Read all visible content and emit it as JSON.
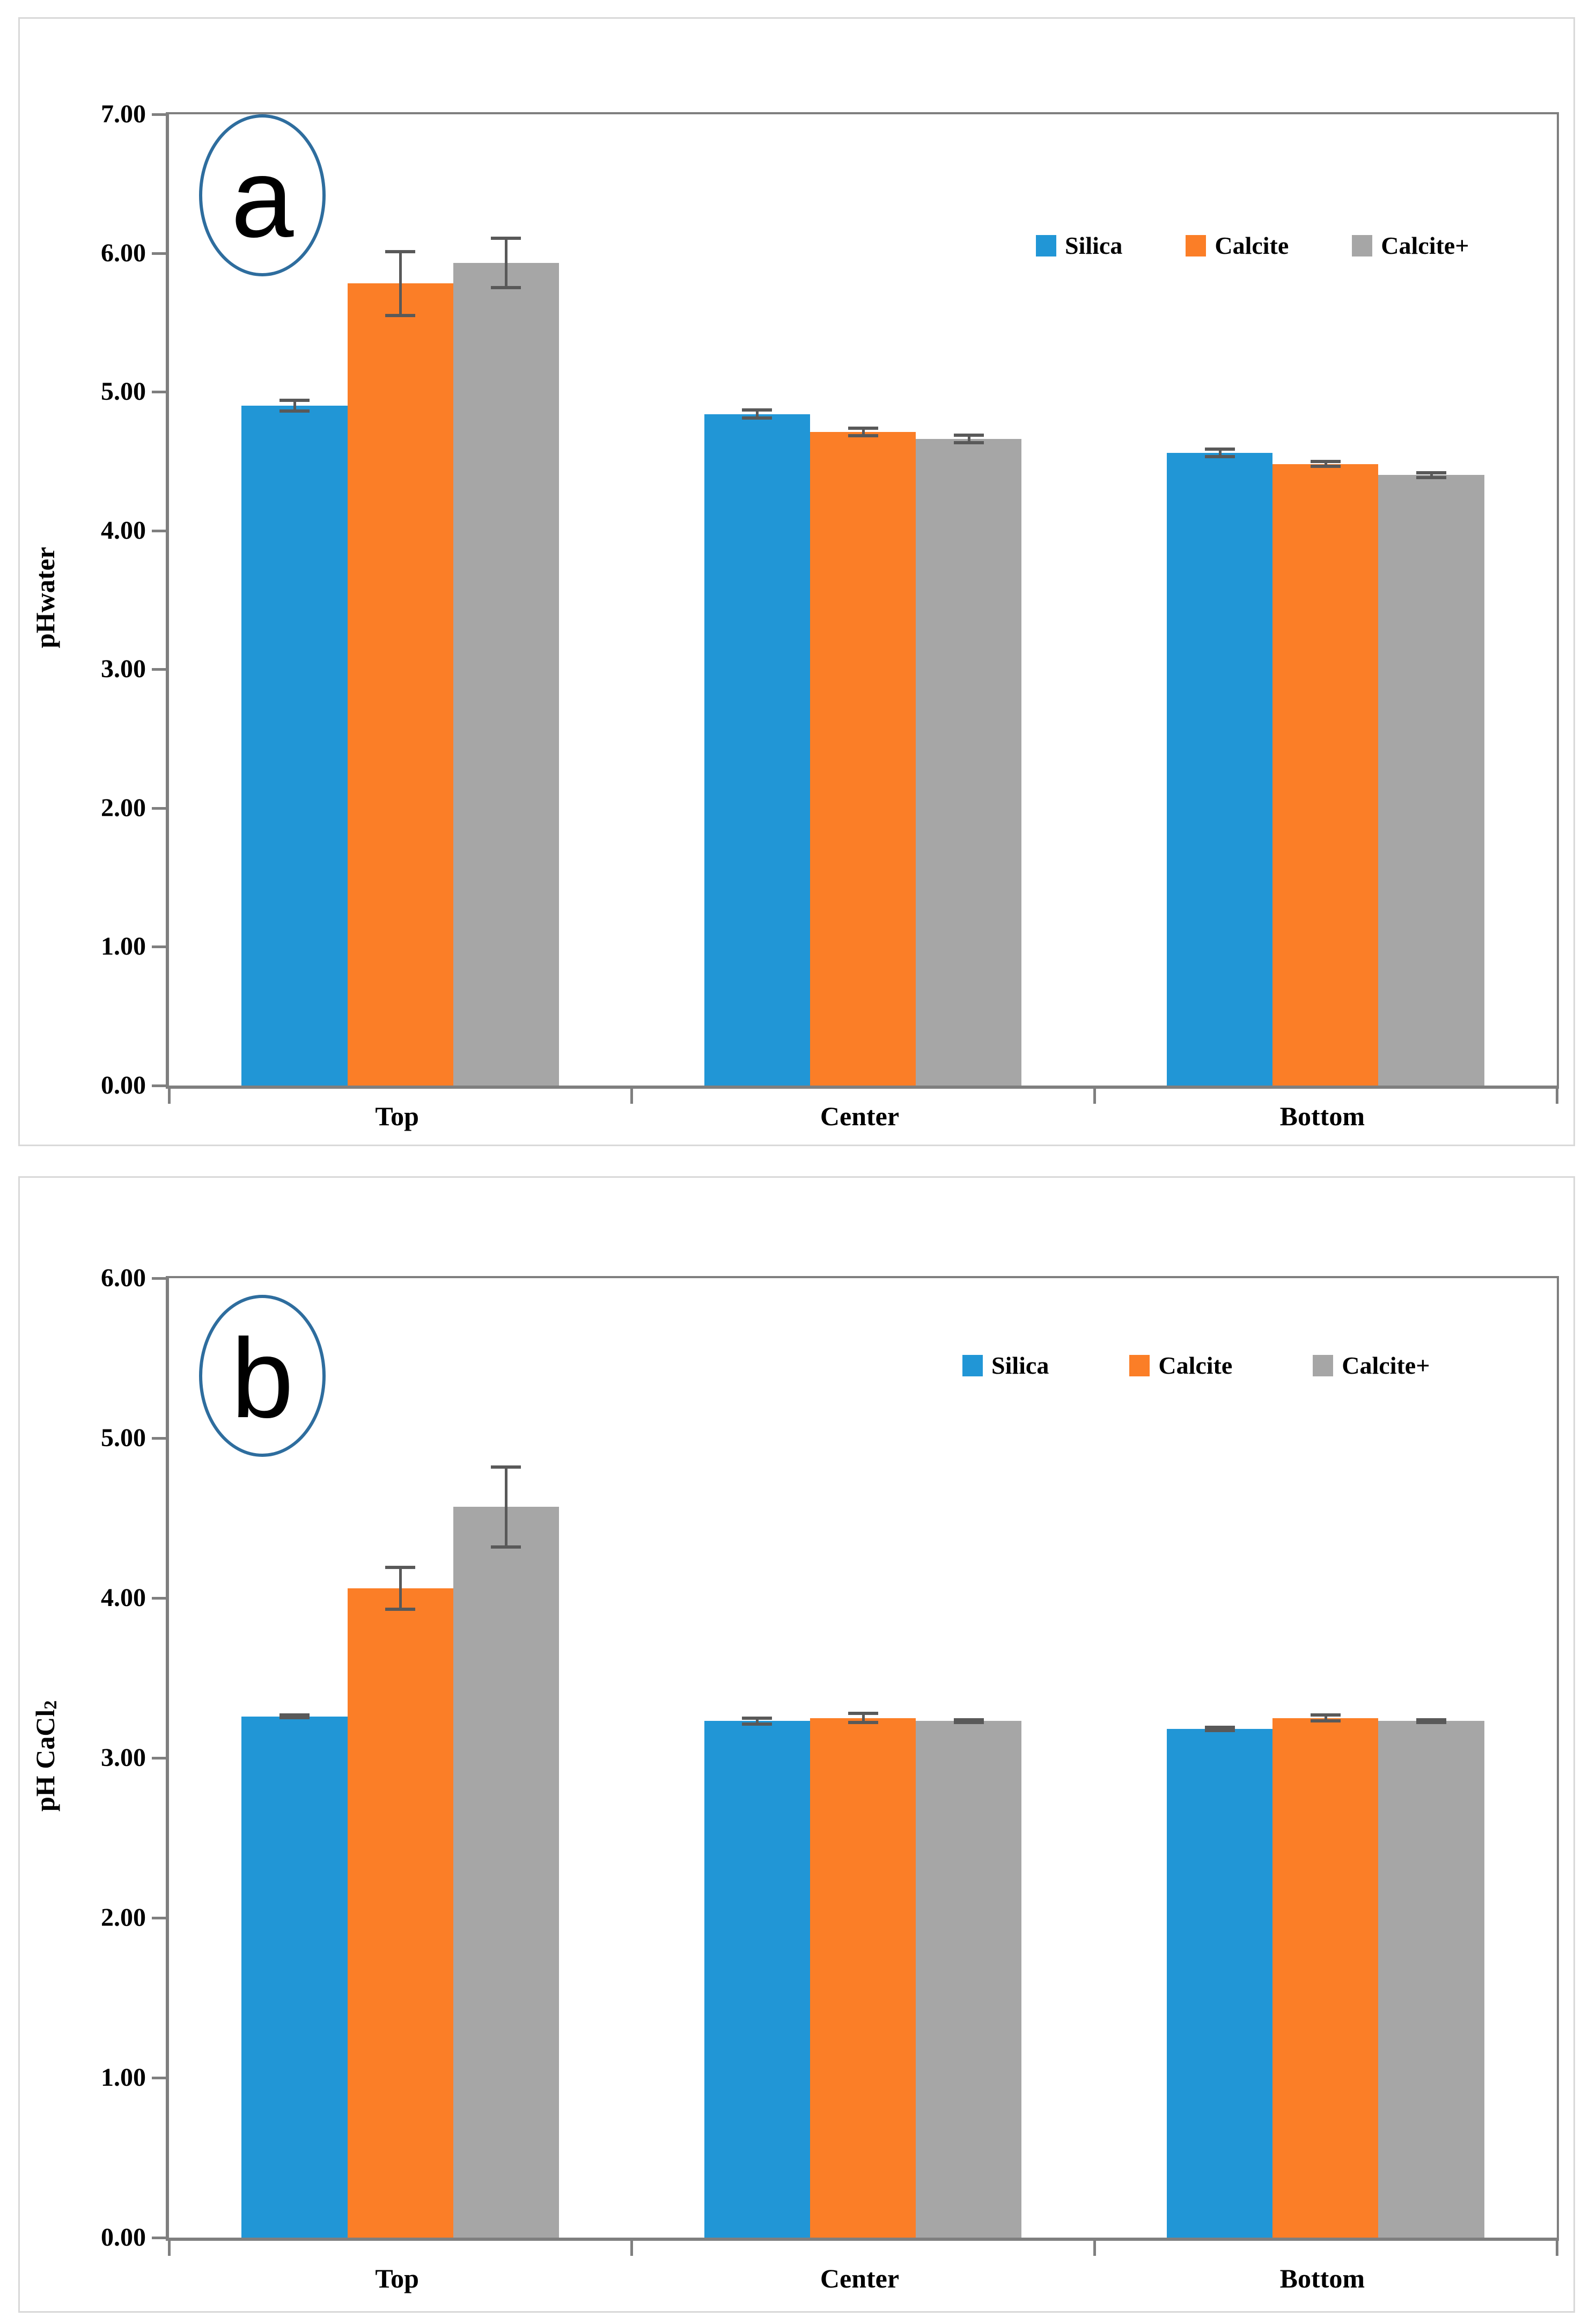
{
  "chart_data": [
    {
      "type": "bar",
      "panel_label": "a",
      "ylabel": "pHwater",
      "ylabel_sub": "",
      "ylim": [
        0,
        7
      ],
      "ytick_step": 1,
      "ytick_decimals": 2,
      "grid": false,
      "legend_position": "top-right",
      "categories": [
        "Top",
        "Center",
        "Bottom"
      ],
      "series": [
        {
          "name": "Silica",
          "color": "#2196D6",
          "values": [
            4.9,
            4.84,
            4.56
          ],
          "errors": [
            0.05,
            0.04,
            0.04
          ]
        },
        {
          "name": "Calcite",
          "color": "#FB7E27",
          "values": [
            5.78,
            4.71,
            4.48
          ],
          "errors": [
            0.24,
            0.04,
            0.03
          ]
        },
        {
          "name": "Calcite+",
          "color": "#A6A6A6",
          "values": [
            5.93,
            4.66,
            4.4
          ],
          "errors": [
            0.19,
            0.04,
            0.03
          ]
        }
      ],
      "error_bar_color": "#595959",
      "axis_color": "#7F7F7F",
      "circle_color": "#2E6D9E"
    },
    {
      "type": "bar",
      "panel_label": "b",
      "ylabel": "pH CaCl",
      "ylabel_sub": "2",
      "ylim": [
        0,
        6
      ],
      "ytick_step": 1,
      "ytick_decimals": 2,
      "grid": false,
      "legend_position": "top-right",
      "categories": [
        "Top",
        "Center",
        "Bottom"
      ],
      "series": [
        {
          "name": "Silica",
          "color": "#2196D6",
          "values": [
            3.26,
            3.23,
            3.18
          ],
          "errors": [
            0.02,
            0.03,
            0.02
          ]
        },
        {
          "name": "Calcite",
          "color": "#FB7E27",
          "values": [
            4.06,
            3.25,
            3.25
          ],
          "errors": [
            0.14,
            0.04,
            0.03
          ]
        },
        {
          "name": "Calcite+",
          "color": "#A6A6A6",
          "values": [
            4.57,
            3.23,
            3.23
          ],
          "errors": [
            0.26,
            0.02,
            0.02
          ]
        }
      ],
      "error_bar_color": "#595959",
      "axis_color": "#7F7F7F",
      "circle_color": "#2E6D9E"
    }
  ]
}
